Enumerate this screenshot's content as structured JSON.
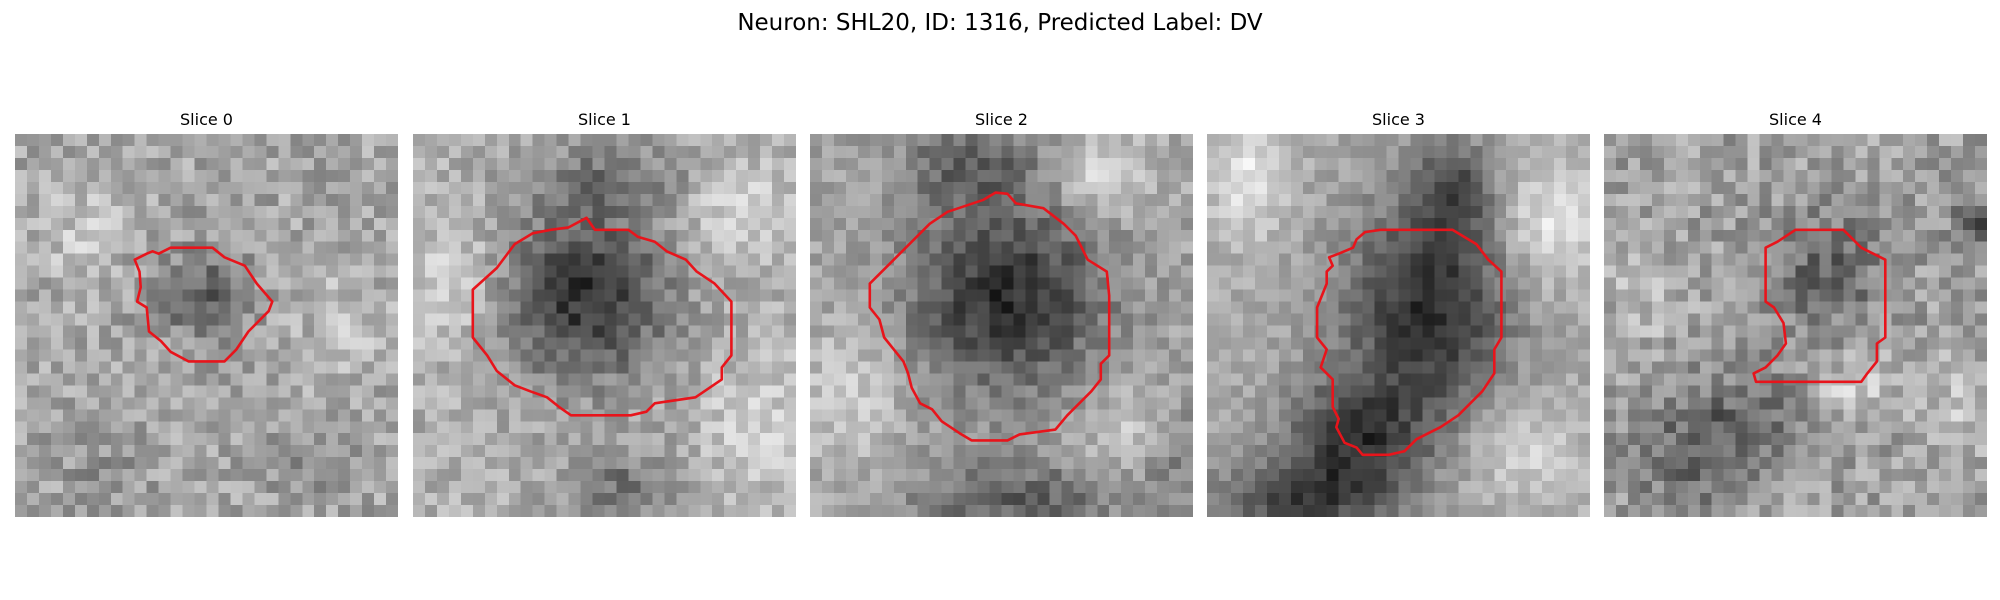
{
  "figure": {
    "title": "Neuron: SHL20, ID: 1316, Predicted Label: DV"
  },
  "outline_color": "#e8141b",
  "slices": [
    {
      "title": "Slice 0"
    },
    {
      "title": "Slice 1"
    },
    {
      "title": "Slice 2"
    },
    {
      "title": "Slice 3"
    },
    {
      "title": "Slice 4"
    }
  ]
}
